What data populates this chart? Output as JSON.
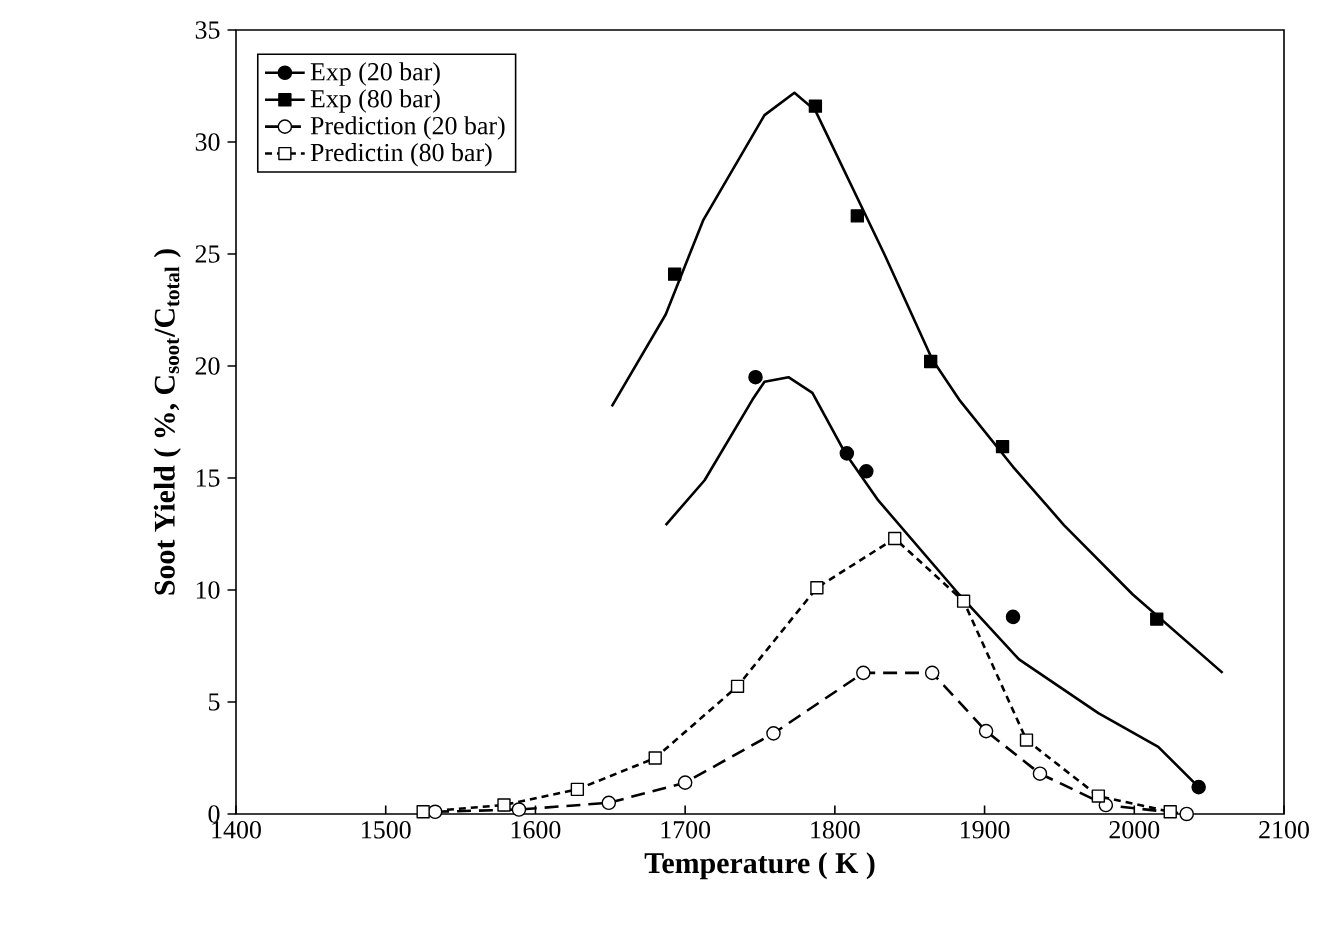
{
  "chart_data": {
    "type": "line",
    "xlabel": "Temperature ( K )",
    "ylabel": "Soot Yield ( %, C$_{soot}$/C$_{total}$ )",
    "xlim": [
      1400,
      2100
    ],
    "xticks": [
      1400,
      1500,
      1600,
      1700,
      1800,
      1900,
      2000,
      2100
    ],
    "ylim": [
      0,
      35
    ],
    "yticks": [
      0,
      5,
      10,
      15,
      20,
      25,
      30,
      35
    ],
    "grid": false,
    "legend": "top left",
    "series": [
      {
        "name": "Exp (20 bar)",
        "type": "scatter",
        "marker": "circle",
        "color": "#000000",
        "x": [
          1747,
          1808,
          1821,
          1919,
          2043
        ],
        "values": [
          19.5,
          16.1,
          15.3,
          8.8,
          1.2
        ]
      },
      {
        "name": "Exp (80 bar)",
        "type": "scatter",
        "marker": "square",
        "color": "#000000",
        "x": [
          1693,
          1787,
          1815,
          1864,
          1912,
          2015
        ],
        "values": [
          24.1,
          31.6,
          26.7,
          20.2,
          16.4,
          8.7
        ]
      },
      {
        "name": "Prediction (20 bar)",
        "marker": "circle",
        "line_style": "dashed",
        "color": "#000000",
        "x": [
          1533,
          1589,
          1649,
          1700,
          1759,
          1819,
          1865,
          1901,
          1937,
          1981,
          2035
        ],
        "values": [
          0.1,
          0.2,
          0.5,
          1.4,
          3.6,
          6.3,
          6.3,
          3.7,
          1.8,
          0.4,
          0.0
        ]
      },
      {
        "name": "Predictin (80 bar)",
        "marker": "square",
        "line_style": "dotted",
        "color": "#000000",
        "x": [
          1525,
          1579,
          1628,
          1680,
          1735,
          1788,
          1840,
          1886,
          1928,
          1976,
          2024
        ],
        "values": [
          0.1,
          0.4,
          1.1,
          2.5,
          5.7,
          10.1,
          12.3,
          9.5,
          3.3,
          0.8,
          0.1
        ]
      },
      {
        "marker": "none",
        "line_style": "solid",
        "color": "#000000",
        "x": [
          1687,
          1713,
          1745,
          1753,
          1769,
          1785,
          1807,
          1829,
          1883,
          1923,
          1976,
          2016,
          2043
        ],
        "values": [
          12.9,
          14.9,
          18.5,
          19.3,
          19.5,
          18.8,
          16.1,
          14.0,
          9.8,
          6.9,
          4.5,
          3.0,
          1.2
        ]
      },
      {
        "marker": "none",
        "line_style": "solid",
        "color": "#000000",
        "x": [
          1651,
          1687,
          1712,
          1753,
          1773,
          1787,
          1833,
          1865,
          1883,
          1919,
          1953,
          1999,
          2059
        ],
        "values": [
          18.2,
          22.3,
          26.5,
          31.2,
          32.2,
          31.4,
          25.0,
          20.3,
          18.5,
          15.5,
          12.9,
          9.8,
          6.3
        ]
      }
    ]
  }
}
